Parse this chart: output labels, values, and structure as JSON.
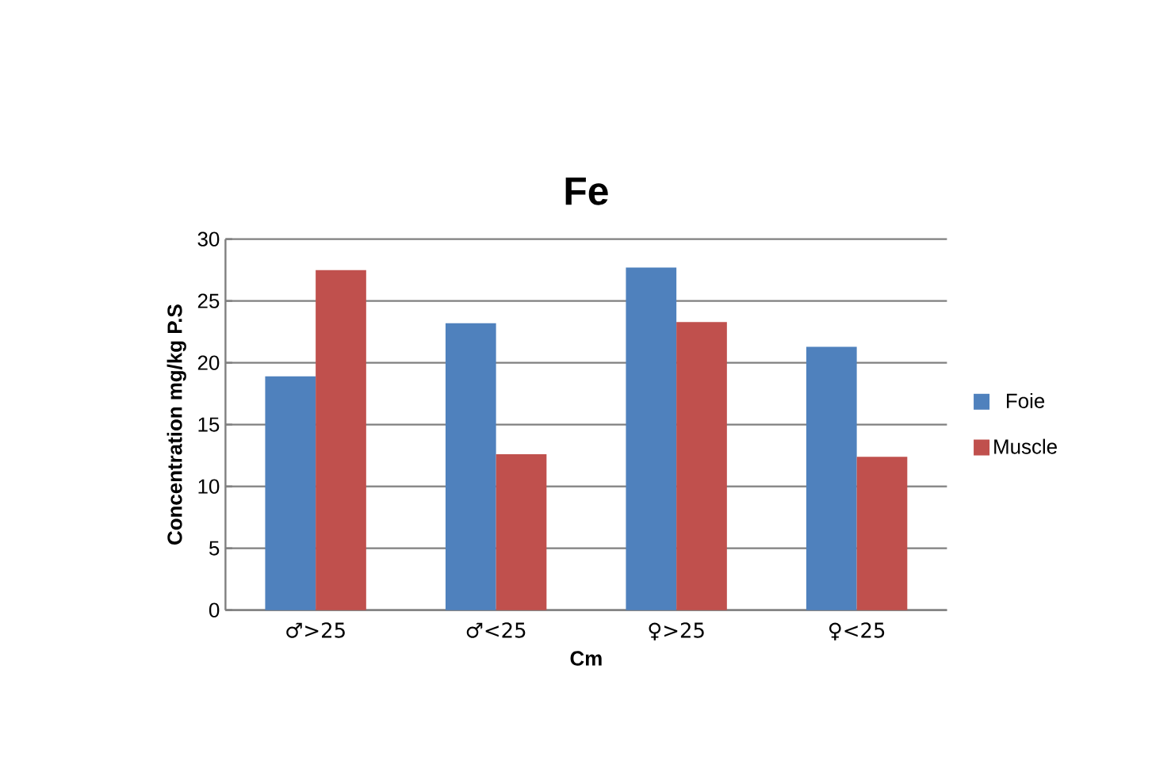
{
  "chart_data": {
    "type": "bar",
    "title": "Fe",
    "xlabel": "Cm",
    "ylabel": "Concentration  mg/kg P.S",
    "categories": [
      "♂>25",
      "♂<25",
      "♀>25",
      "♀<25"
    ],
    "series": [
      {
        "name": "Foie",
        "color": "#4f81bd",
        "values": [
          18.9,
          23.2,
          27.7,
          21.3
        ]
      },
      {
        "name": "Muscle",
        "color": "#c0504d",
        "values": [
          27.5,
          12.6,
          23.3,
          12.4
        ]
      }
    ],
    "ylim": [
      0,
      30
    ],
    "yticks": [
      0,
      5,
      10,
      15,
      20,
      25,
      30
    ],
    "grid": "y",
    "legend": "right"
  }
}
